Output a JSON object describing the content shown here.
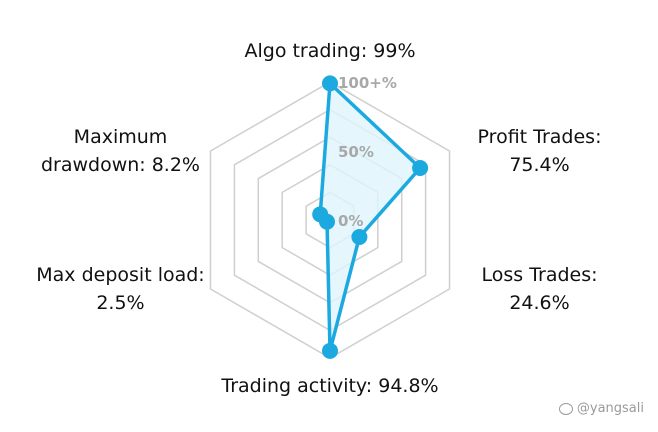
{
  "chart_data": {
    "type": "radar",
    "axes": [
      {
        "label_lines": [
          "Algo trading: 99%"
        ],
        "value": 99
      },
      {
        "label_lines": [
          "Profit Trades:",
          "75.4%"
        ],
        "value": 75.4
      },
      {
        "label_lines": [
          "Loss Trades:",
          "24.6%"
        ],
        "value": 24.6
      },
      {
        "label_lines": [
          "Trading activity: 94.8%"
        ],
        "value": 94.8
      },
      {
        "label_lines": [
          "Max deposit load:",
          "2.5%"
        ],
        "value": 2.5
      },
      {
        "label_lines": [
          "Maximum",
          "drawdown: 8.2%"
        ],
        "value": 8.2
      }
    ],
    "range": [
      0,
      100
    ],
    "ticks": [
      {
        "value": 0,
        "label": "0%"
      },
      {
        "value": 50,
        "label": "50%"
      },
      {
        "value": 100,
        "label": "100+%"
      }
    ],
    "grid_rings": 5,
    "colors": {
      "series_line": "#1ca9e0",
      "series_fill": "#dff4fd",
      "grid": "#cfcfcf",
      "tick_text": "#a8a8a8"
    }
  },
  "watermark": {
    "text": "@yangsali"
  }
}
